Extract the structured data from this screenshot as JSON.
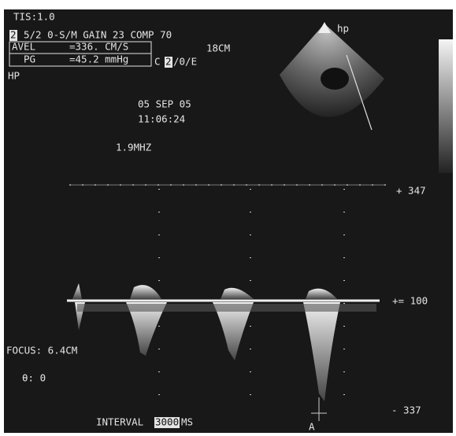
{
  "screen": {
    "tis": "TIS:1.0",
    "mode_box": "2",
    "settings": "5/2 0-S/M GAIN 23  COMP 70",
    "measurements": [
      {
        "label": "AVEL",
        "value": "=336. CM/S"
      },
      {
        "label": "PG",
        "value": "=45.2 mmHg"
      }
    ],
    "depth": "18CM",
    "map_prefix": "C",
    "map_box": "2",
    "map_suffix": "/0/E",
    "probe": "HP",
    "sector_label": "hp",
    "date": "05 SEP 05",
    "time": "11:06:24",
    "frequency": "1.9MHZ",
    "scale_top": "+ 347",
    "scale_baseline": "+= 100",
    "scale_bottom": "- 337",
    "focus": "FOCUS: 6.4CM",
    "angle": "θ: 0",
    "interval_label": "INTERVAL",
    "interval_box": "3000",
    "interval_unit": "MS",
    "marker": "A"
  }
}
